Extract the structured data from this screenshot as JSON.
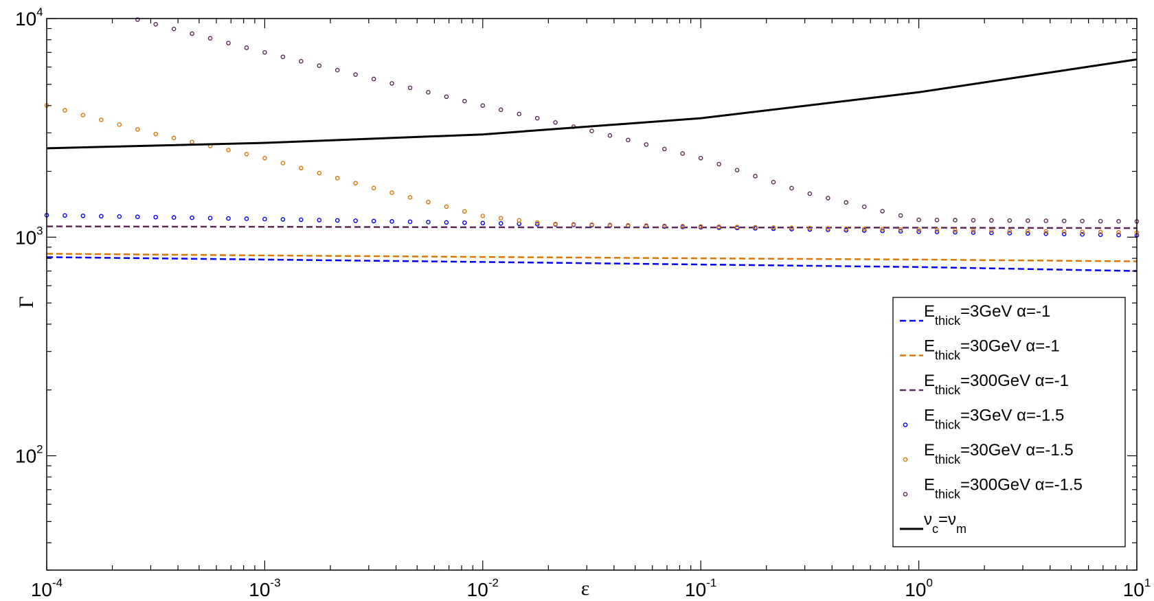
{
  "chart_data": {
    "type": "line",
    "xlabel": "ε",
    "ylabel": "Γ",
    "xscale": "log",
    "yscale": "log",
    "xlim": [
      0.0001,
      10
    ],
    "ylim": [
      30,
      10000
    ],
    "x_ticks": [
      {
        "base": "10",
        "exp": "-4"
      },
      {
        "base": "10",
        "exp": "-3"
      },
      {
        "base": "10",
        "exp": "-2"
      },
      {
        "base": "10",
        "exp": "-1"
      },
      {
        "base": "10",
        "exp": "0"
      },
      {
        "base": "10",
        "exp": "1"
      }
    ],
    "y_ticks": [
      {
        "base": "10",
        "exp": "2"
      },
      {
        "base": "10",
        "exp": "3"
      },
      {
        "base": "10",
        "exp": "4"
      }
    ],
    "legend_position": "lower-right",
    "grid": false,
    "series": [
      {
        "name_main": "E",
        "name_sub": "thick",
        "name_rest": "=3GeV α=-1",
        "style": "dashed",
        "color": "#0000ee",
        "x": [
          0.0001,
          0.001,
          0.01,
          0.1,
          1,
          10
        ],
        "y": [
          810,
          790,
          770,
          750,
          730,
          700
        ]
      },
      {
        "name_main": "E",
        "name_sub": "thick",
        "name_rest": "=30GeV α=-1",
        "style": "dashed",
        "color": "#d9760a",
        "x": [
          0.0001,
          0.001,
          0.01,
          0.1,
          1,
          10
        ],
        "y": [
          840,
          825,
          812,
          800,
          790,
          775
        ]
      },
      {
        "name_main": "E",
        "name_sub": "thick",
        "name_rest": "=300GeV α=-1",
        "style": "dashed",
        "color": "#5a2a58",
        "x": [
          0.0001,
          0.001,
          0.01,
          0.1,
          1,
          10
        ],
        "y": [
          1120,
          1115,
          1110,
          1108,
          1105,
          1100
        ]
      },
      {
        "name_main": "E",
        "name_sub": "thick",
        "name_rest": "=3GeV α=-1.5",
        "style": "circles",
        "color": "#0000ee",
        "x": [
          0.0001,
          0.001,
          0.01,
          0.1,
          1,
          10
        ],
        "y": [
          1260,
          1210,
          1160,
          1110,
          1060,
          1020
        ]
      },
      {
        "name_main": "E",
        "name_sub": "thick",
        "name_rest": "=30GeV α=-1.5",
        "style": "circles",
        "color": "#d9760a",
        "x": [
          0.0001,
          0.0003,
          0.001,
          0.003,
          0.01,
          0.02,
          0.1,
          1,
          10
        ],
        "y": [
          4000,
          3000,
          2300,
          1700,
          1250,
          1150,
          1120,
          1080,
          1050
        ]
      },
      {
        "name_main": "E",
        "name_sub": "thick",
        "name_rest": "=300GeV α=-1.5",
        "style": "circles",
        "color": "#5a2a58",
        "x": [
          0.00025,
          0.001,
          0.01,
          0.03,
          0.1,
          0.3,
          1,
          10
        ],
        "y": [
          10000,
          7000,
          4000,
          3100,
          2300,
          1600,
          1200,
          1180
        ]
      },
      {
        "name_main": "ν",
        "name_sub": "c",
        "name_rest": "=ν",
        "name_sub2": "m",
        "style": "solid",
        "color": "#000000",
        "x": [
          0.0001,
          0.001,
          0.01,
          0.1,
          1,
          10
        ],
        "y": [
          2550,
          2700,
          2950,
          3500,
          4600,
          6500
        ]
      }
    ]
  }
}
